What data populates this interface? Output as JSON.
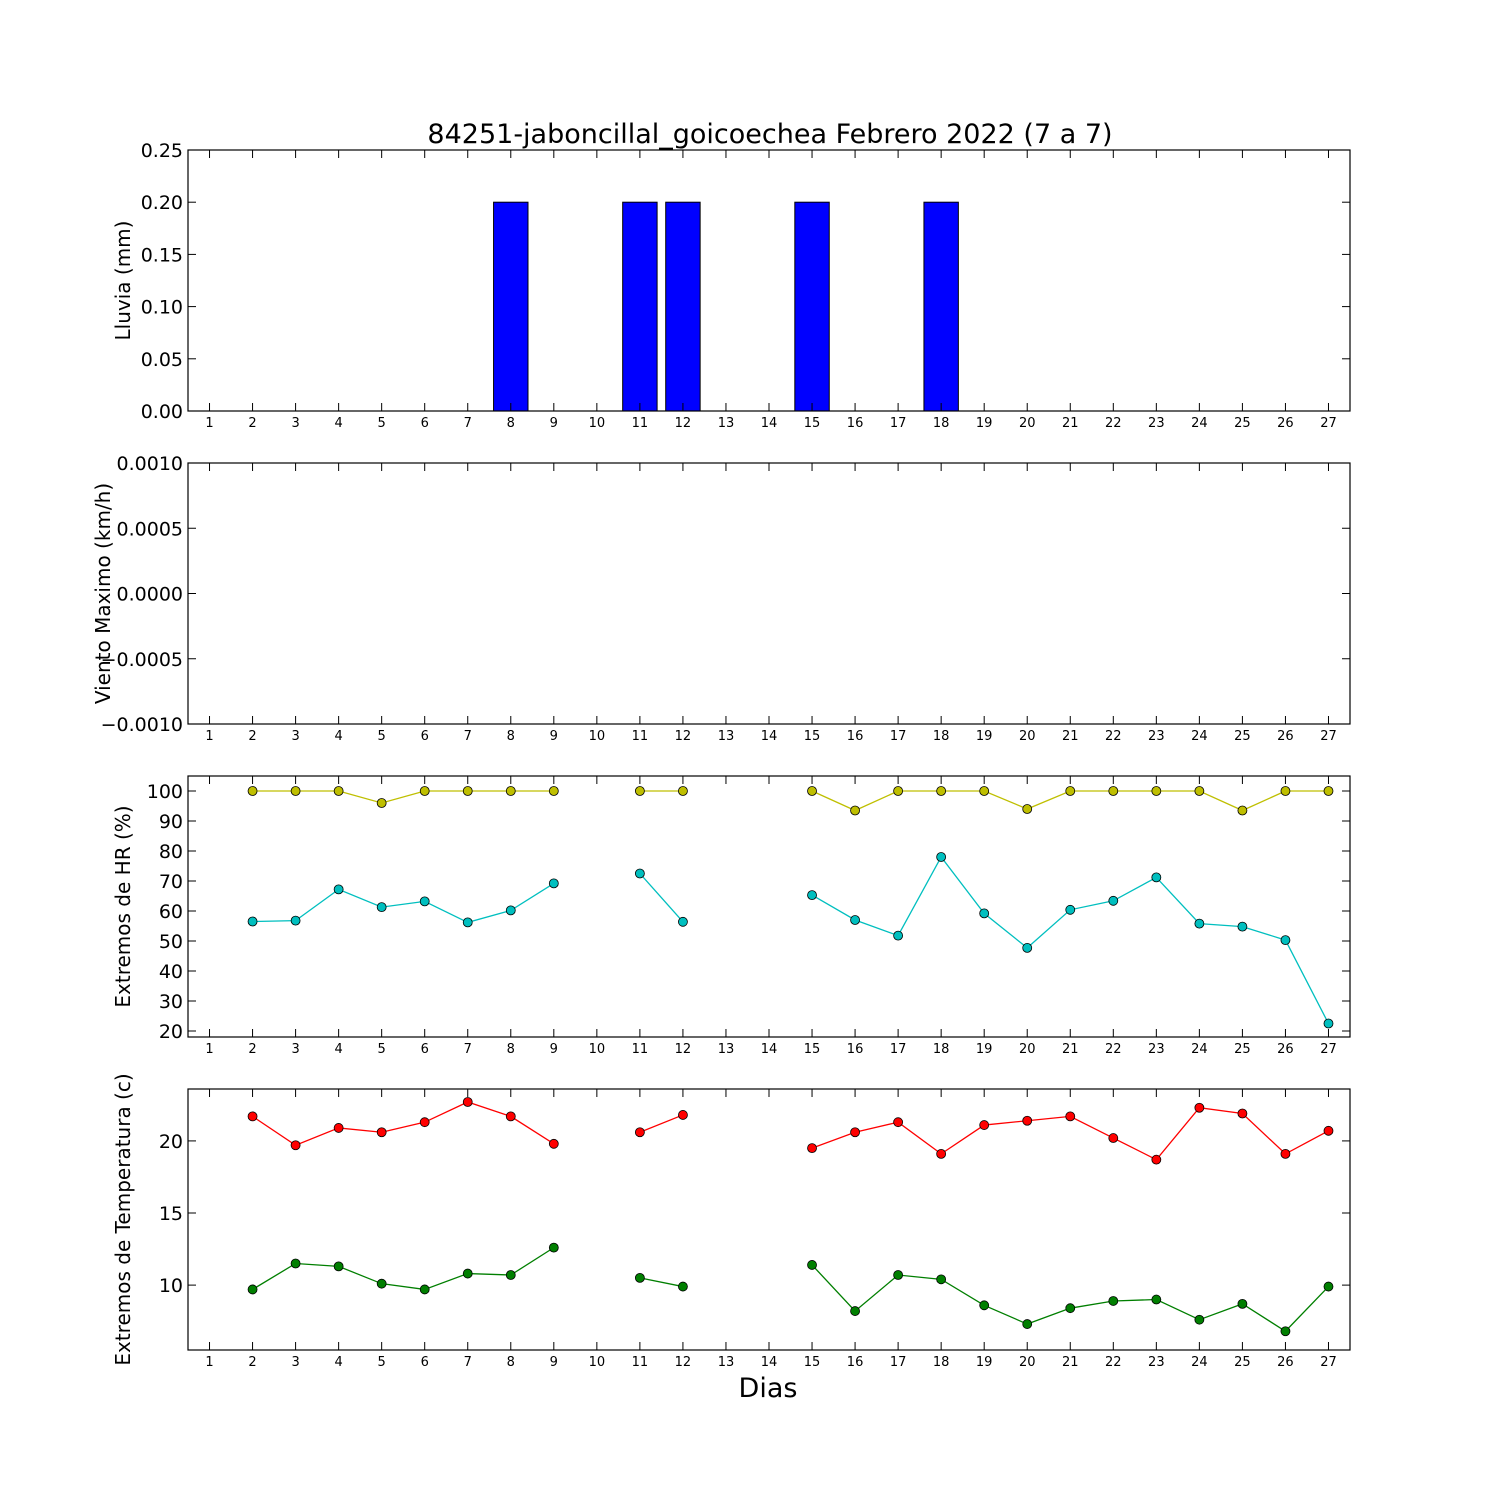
{
  "title": "84251-jaboncillal_goicoechea Febrero 2022  (7 a 7)",
  "xlabel": "Dias",
  "days": [
    1,
    2,
    3,
    4,
    5,
    6,
    7,
    8,
    9,
    10,
    11,
    12,
    13,
    14,
    15,
    16,
    17,
    18,
    19,
    20,
    21,
    22,
    23,
    24,
    25,
    26,
    27
  ],
  "chart_data": [
    {
      "id": "lluvia",
      "type": "bar",
      "ylabel": "Lluvia (mm)",
      "ylim": [
        0,
        0.25
      ],
      "yticks": [
        0.0,
        0.05,
        0.1,
        0.15,
        0.2,
        0.25
      ],
      "ytick_labels": [
        "0.00",
        "0.05",
        "0.10",
        "0.15",
        "0.20",
        "0.25"
      ],
      "xlim": [
        0.5,
        27.5
      ],
      "bar_width": 0.8,
      "color": "#0000ff",
      "x": [
        1,
        2,
        3,
        4,
        5,
        6,
        7,
        8,
        9,
        10,
        11,
        12,
        13,
        14,
        15,
        16,
        17,
        18,
        19,
        20,
        21,
        22,
        23,
        24,
        25,
        26,
        27
      ],
      "values": [
        0,
        0,
        0,
        0,
        0,
        0,
        0,
        0.2,
        0,
        0,
        0.2,
        0.2,
        0,
        0,
        0.2,
        0,
        0,
        0.2,
        0,
        0,
        0,
        0,
        0,
        0,
        0,
        0,
        0
      ]
    },
    {
      "id": "viento",
      "type": "line",
      "ylabel": "Viento Maximo (km/h)",
      "ylim": [
        -0.001,
        0.001
      ],
      "yticks": [
        -0.001,
        -0.0005,
        0.0,
        0.0005,
        0.001
      ],
      "ytick_labels": [
        "−0.0010",
        "−0.0005",
        "0.0000",
        "0.0005",
        "0.0010"
      ],
      "xlim": [
        0.5,
        27.5
      ],
      "series": []
    },
    {
      "id": "hr",
      "type": "line",
      "ylabel": "Extremos de HR (%)",
      "ylim": [
        18,
        105
      ],
      "yticks": [
        20,
        30,
        40,
        50,
        60,
        70,
        80,
        90,
        100
      ],
      "ytick_labels": [
        "20",
        "30",
        "40",
        "50",
        "60",
        "70",
        "80",
        "90",
        "100"
      ],
      "xlim": [
        0.5,
        27.5
      ],
      "series": [
        {
          "color": "#bfbf00",
          "x": [
            1,
            2,
            3,
            4,
            5,
            6,
            7,
            8,
            9,
            10,
            11,
            12,
            13,
            14,
            15,
            16,
            17,
            18,
            19,
            20,
            21,
            22,
            23,
            24,
            25,
            26,
            27
          ],
          "values": [
            null,
            100,
            100,
            100,
            96,
            100,
            100,
            100,
            100,
            null,
            100,
            100,
            null,
            null,
            100,
            93.5,
            100,
            100,
            100,
            94,
            100,
            100,
            100,
            100,
            93.5,
            100,
            100
          ]
        },
        {
          "color": "#00bfbf",
          "x": [
            1,
            2,
            3,
            4,
            5,
            6,
            7,
            8,
            9,
            10,
            11,
            12,
            13,
            14,
            15,
            16,
            17,
            18,
            19,
            20,
            21,
            22,
            23,
            24,
            25,
            26,
            27
          ],
          "values": [
            null,
            56.5,
            56.8,
            67.2,
            61.3,
            63.2,
            56.2,
            60.2,
            69.2,
            null,
            72.5,
            56.4,
            null,
            null,
            65.3,
            57,
            51.8,
            78,
            59.2,
            47.7,
            60.4,
            63.4,
            71.2,
            55.8,
            54.8,
            50.3,
            22.5
          ]
        }
      ]
    },
    {
      "id": "temperatura",
      "type": "line",
      "ylabel": "Extremos de Temperatura (c)",
      "ylim": [
        5.5,
        23.6
      ],
      "yticks": [
        10,
        15,
        20
      ],
      "ytick_labels": [
        "10",
        "15",
        "20"
      ],
      "xlim": [
        0.5,
        27.5
      ],
      "series": [
        {
          "color": "#ff0000",
          "x": [
            1,
            2,
            3,
            4,
            5,
            6,
            7,
            8,
            9,
            10,
            11,
            12,
            13,
            14,
            15,
            16,
            17,
            18,
            19,
            20,
            21,
            22,
            23,
            24,
            25,
            26,
            27
          ],
          "values": [
            null,
            21.7,
            19.7,
            20.9,
            20.6,
            21.3,
            22.7,
            21.7,
            19.8,
            null,
            20.6,
            21.8,
            null,
            null,
            19.5,
            20.6,
            21.3,
            19.1,
            21.1,
            21.4,
            21.7,
            20.2,
            18.7,
            22.3,
            21.9,
            19.1,
            20.7
          ]
        },
        {
          "color": "#007f00",
          "x": [
            1,
            2,
            3,
            4,
            5,
            6,
            7,
            8,
            9,
            10,
            11,
            12,
            13,
            14,
            15,
            16,
            17,
            18,
            19,
            20,
            21,
            22,
            23,
            24,
            25,
            26,
            27
          ],
          "values": [
            null,
            9.7,
            11.5,
            11.3,
            10.1,
            9.7,
            10.8,
            10.7,
            12.6,
            null,
            10.5,
            9.9,
            null,
            null,
            11.4,
            8.2,
            10.7,
            10.4,
            8.6,
            7.3,
            8.4,
            8.9,
            9,
            7.6,
            8.7,
            6.8,
            9.9
          ]
        }
      ]
    }
  ]
}
